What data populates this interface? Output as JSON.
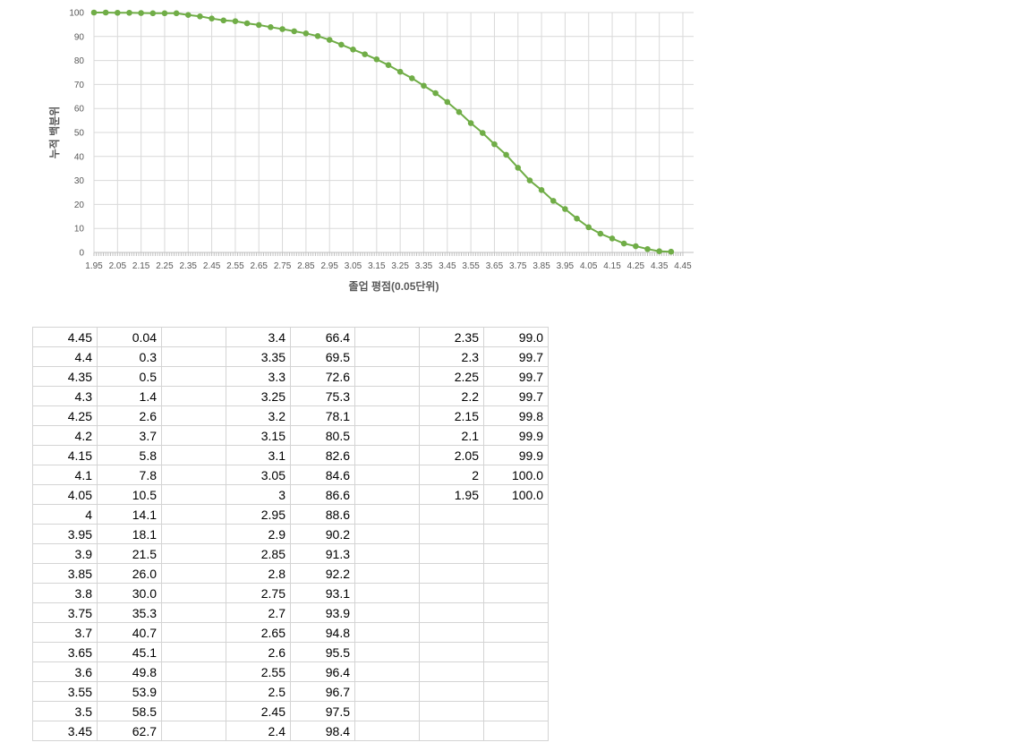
{
  "chart_data": {
    "type": "line",
    "xlabel": "졸업 평점(0.05단위)",
    "ylabel": "누적 백분위",
    "xlim": [
      1.95,
      4.45
    ],
    "ylim": [
      0,
      100
    ],
    "grid": true,
    "color": "#70ad47",
    "x_ticks": [
      "1.95",
      "2.05",
      "2.15",
      "2.25",
      "2.35",
      "2.45",
      "2.55",
      "2.65",
      "2.75",
      "2.85",
      "2.95",
      "3.05",
      "3.15",
      "3.25",
      "3.35",
      "3.45",
      "3.55",
      "3.65",
      "3.75",
      "3.85",
      "3.95",
      "4.05",
      "4.15",
      "4.25",
      "4.35",
      "4.45"
    ],
    "y_ticks": [
      "0",
      "10",
      "20",
      "30",
      "40",
      "50",
      "60",
      "70",
      "80",
      "90",
      "100"
    ],
    "x": [
      1.95,
      2.0,
      2.05,
      2.1,
      2.15,
      2.2,
      2.25,
      2.3,
      2.35,
      2.4,
      2.45,
      2.5,
      2.55,
      2.6,
      2.65,
      2.7,
      2.75,
      2.8,
      2.85,
      2.9,
      2.95,
      3.0,
      3.05,
      3.1,
      3.15,
      3.2,
      3.25,
      3.3,
      3.35,
      3.4,
      3.45,
      3.5,
      3.55,
      3.6,
      3.65,
      3.7,
      3.75,
      3.8,
      3.85,
      3.9,
      3.95,
      4.0,
      4.05,
      4.1,
      4.15,
      4.2,
      4.25,
      4.3,
      4.35,
      4.4
    ],
    "y": [
      100.0,
      100.0,
      99.9,
      99.9,
      99.8,
      99.7,
      99.7,
      99.7,
      99.0,
      98.4,
      97.5,
      96.7,
      96.4,
      95.5,
      94.8,
      93.9,
      93.1,
      92.2,
      91.3,
      90.2,
      88.6,
      86.6,
      84.6,
      82.6,
      80.5,
      78.1,
      75.3,
      72.6,
      69.5,
      66.4,
      62.7,
      58.5,
      53.9,
      49.8,
      45.1,
      40.7,
      35.3,
      30.0,
      26.0,
      21.5,
      18.1,
      14.1,
      10.5,
      7.8,
      5.8,
      3.7,
      2.6,
      1.4,
      0.5,
      0.3
    ]
  },
  "table": {
    "rows": [
      [
        "4.45",
        "0.04",
        "",
        "3.4",
        "66.4",
        "",
        "2.35",
        "99.0"
      ],
      [
        "4.4",
        "0.3",
        "",
        "3.35",
        "69.5",
        "",
        "2.3",
        "99.7"
      ],
      [
        "4.35",
        "0.5",
        "",
        "3.3",
        "72.6",
        "",
        "2.25",
        "99.7"
      ],
      [
        "4.3",
        "1.4",
        "",
        "3.25",
        "75.3",
        "",
        "2.2",
        "99.7"
      ],
      [
        "4.25",
        "2.6",
        "",
        "3.2",
        "78.1",
        "",
        "2.15",
        "99.8"
      ],
      [
        "4.2",
        "3.7",
        "",
        "3.15",
        "80.5",
        "",
        "2.1",
        "99.9"
      ],
      [
        "4.15",
        "5.8",
        "",
        "3.1",
        "82.6",
        "",
        "2.05",
        "99.9"
      ],
      [
        "4.1",
        "7.8",
        "",
        "3.05",
        "84.6",
        "",
        "2",
        "100.0"
      ],
      [
        "4.05",
        "10.5",
        "",
        "3",
        "86.6",
        "",
        "1.95",
        "100.0"
      ],
      [
        "4",
        "14.1",
        "",
        "2.95",
        "88.6",
        "",
        "",
        ""
      ],
      [
        "3.95",
        "18.1",
        "",
        "2.9",
        "90.2",
        "",
        "",
        ""
      ],
      [
        "3.9",
        "21.5",
        "",
        "2.85",
        "91.3",
        "",
        "",
        ""
      ],
      [
        "3.85",
        "26.0",
        "",
        "2.8",
        "92.2",
        "",
        "",
        ""
      ],
      [
        "3.8",
        "30.0",
        "",
        "2.75",
        "93.1",
        "",
        "",
        ""
      ],
      [
        "3.75",
        "35.3",
        "",
        "2.7",
        "93.9",
        "",
        "",
        ""
      ],
      [
        "3.7",
        "40.7",
        "",
        "2.65",
        "94.8",
        "",
        "",
        ""
      ],
      [
        "3.65",
        "45.1",
        "",
        "2.6",
        "95.5",
        "",
        "",
        ""
      ],
      [
        "3.6",
        "49.8",
        "",
        "2.55",
        "96.4",
        "",
        "",
        ""
      ],
      [
        "3.55",
        "53.9",
        "",
        "2.5",
        "96.7",
        "",
        "",
        ""
      ],
      [
        "3.5",
        "58.5",
        "",
        "2.45",
        "97.5",
        "",
        "",
        ""
      ],
      [
        "3.45",
        "62.7",
        "",
        "2.4",
        "98.4",
        "",
        "",
        ""
      ]
    ]
  }
}
